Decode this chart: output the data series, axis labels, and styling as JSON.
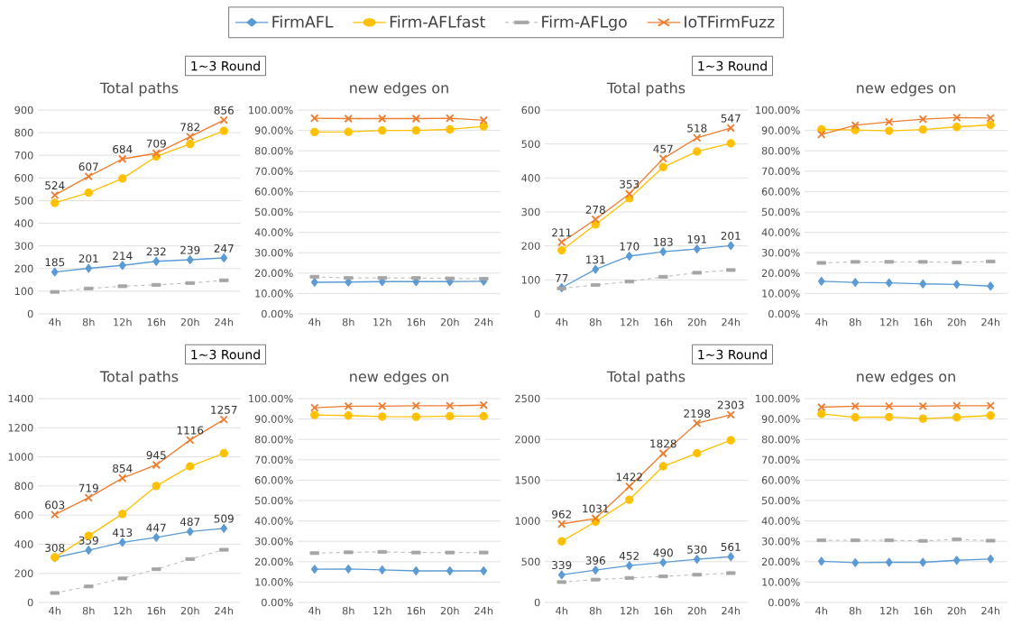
{
  "chart_data": [
    {
      "type": "line",
      "title": "Total paths",
      "subtitle": "1~3 Round",
      "categories": [
        "4h",
        "8h",
        "12h",
        "16h",
        "20h",
        "24h"
      ],
      "ylim": [
        0,
        900
      ],
      "yticks": [
        0,
        100,
        200,
        300,
        400,
        500,
        600,
        700,
        800,
        900
      ],
      "grid": "y",
      "legend": "top",
      "series": [
        {
          "name": "FirmAFL",
          "color": "#5b9bd5",
          "marker": "diamond",
          "line_style": "solid",
          "values": [
            185,
            201,
            214,
            232,
            239,
            247
          ],
          "value_labels": [
            "185",
            "201",
            "214",
            "232",
            "239",
            "247"
          ]
        },
        {
          "name": "Firm-AFLfast",
          "color": "#ffc000",
          "marker": "circle",
          "line_style": "solid",
          "values": [
            490,
            535,
            598,
            695,
            750,
            808
          ]
        },
        {
          "name": "Firm-AFLgo",
          "color": "#a5a5a5",
          "marker": "square",
          "line_style": "dashed",
          "values": [
            97,
            112,
            122,
            128,
            136,
            148
          ]
        },
        {
          "name": "IoTFirmFuzz",
          "color": "#ed7d31",
          "marker": "cross",
          "line_style": "solid",
          "values": [
            524,
            607,
            684,
            709,
            782,
            856
          ],
          "value_labels": [
            "524",
            "607",
            "684",
            "709",
            "782",
            "856"
          ]
        }
      ]
    },
    {
      "type": "line",
      "title": "new edges on",
      "categories": [
        "4h",
        "8h",
        "12h",
        "16h",
        "20h",
        "24h"
      ],
      "ylim": [
        0,
        100
      ],
      "yticks": [
        {
          "value": 0,
          "label": "0.00%"
        },
        {
          "value": 10,
          "label": "10.00%"
        },
        {
          "value": 20,
          "label": "20.00%"
        },
        {
          "value": 30,
          "label": "30.00%"
        },
        {
          "value": 40,
          "label": "40.00%"
        },
        {
          "value": 50,
          "label": "50.00%"
        },
        {
          "value": 60,
          "label": "60.00%"
        },
        {
          "value": 70,
          "label": "70.00%"
        },
        {
          "value": 80,
          "label": "80.00%"
        },
        {
          "value": 90,
          "label": "90.00%"
        },
        {
          "value": 100,
          "label": "100.00%"
        }
      ],
      "grid": "y",
      "series": [
        {
          "color": "#5b9bd5",
          "marker": "diamond",
          "line_style": "solid",
          "values": [
            15.5,
            15.6,
            15.8,
            15.8,
            15.8,
            16
          ]
        },
        {
          "color": "#ffc000",
          "marker": "circle",
          "line_style": "solid",
          "values": [
            89.2,
            89.3,
            90,
            90,
            90.5,
            92
          ]
        },
        {
          "color": "#a5a5a5",
          "marker": "square",
          "line_style": "dashed",
          "values": [
            18.2,
            17.6,
            17.6,
            17.6,
            17.4,
            17.2
          ]
        },
        {
          "color": "#ed7d31",
          "marker": "cross",
          "line_style": "solid",
          "values": [
            96,
            95.8,
            95.8,
            95.8,
            96,
            95
          ]
        }
      ]
    },
    {
      "type": "line",
      "title": "Total paths",
      "subtitle": "1~3 Round",
      "categories": [
        "4h",
        "8h",
        "12h",
        "16h",
        "20h",
        "24h"
      ],
      "ylim": [
        0,
        600
      ],
      "yticks": [
        0,
        100,
        200,
        300,
        400,
        500,
        600
      ],
      "grid": "y",
      "series": [
        {
          "color": "#5b9bd5",
          "marker": "diamond",
          "line_style": "solid",
          "values": [
            77,
            131,
            170,
            183,
            191,
            201
          ],
          "value_labels": [
            "77",
            "131",
            "170",
            "183",
            "191",
            "201"
          ]
        },
        {
          "color": "#ffc000",
          "marker": "circle",
          "line_style": "solid",
          "values": [
            187,
            263,
            340,
            432,
            478,
            502
          ]
        },
        {
          "color": "#a5a5a5",
          "marker": "square",
          "line_style": "dashed",
          "values": [
            75,
            85,
            95,
            109,
            121,
            129
          ]
        },
        {
          "color": "#ed7d31",
          "marker": "cross",
          "line_style": "solid",
          "values": [
            211,
            278,
            353,
            457,
            518,
            547
          ],
          "value_labels": [
            "211",
            "278",
            "353",
            "457",
            "518",
            "547"
          ]
        }
      ]
    },
    {
      "type": "line",
      "title": "new edges on",
      "categories": [
        "4h",
        "8h",
        "12h",
        "16h",
        "20h",
        "24h"
      ],
      "ylim": [
        0,
        100
      ],
      "yticks": [
        {
          "value": 0,
          "label": "0.00%"
        },
        {
          "value": 10,
          "label": "10.00%"
        },
        {
          "value": 20,
          "label": "20.00%"
        },
        {
          "value": 30,
          "label": "30.00%"
        },
        {
          "value": 40,
          "label": "40.00%"
        },
        {
          "value": 50,
          "label": "50.00%"
        },
        {
          "value": 60,
          "label": "60.00%"
        },
        {
          "value": 70,
          "label": "70.00%"
        },
        {
          "value": 80,
          "label": "80.00%"
        },
        {
          "value": 90,
          "label": "90.00%"
        },
        {
          "value": 100,
          "label": "100.00%"
        }
      ],
      "grid": "y",
      "series": [
        {
          "color": "#5b9bd5",
          "marker": "diamond",
          "line_style": "solid",
          "values": [
            16,
            15.4,
            15.2,
            14.7,
            14.4,
            13.6
          ]
        },
        {
          "color": "#ffc000",
          "marker": "circle",
          "line_style": "solid",
          "values": [
            90.5,
            90.2,
            89.8,
            90.4,
            91.7,
            92.7
          ]
        },
        {
          "color": "#a5a5a5",
          "marker": "square",
          "line_style": "dashed",
          "values": [
            25,
            25.5,
            25.5,
            25.5,
            25.2,
            25.7
          ]
        },
        {
          "color": "#ed7d31",
          "marker": "cross",
          "line_style": "solid",
          "values": [
            88,
            92.5,
            94.2,
            95.5,
            96.3,
            96.1
          ]
        }
      ]
    },
    {
      "type": "line",
      "title": "Total paths",
      "subtitle": "1~3 Round",
      "categories": [
        "4h",
        "8h",
        "12h",
        "16h",
        "20h",
        "24h"
      ],
      "ylim": [
        0,
        1400
      ],
      "yticks": [
        0,
        200,
        400,
        600,
        800,
        1000,
        1200,
        1400
      ],
      "grid": "y",
      "series": [
        {
          "color": "#5b9bd5",
          "marker": "diamond",
          "line_style": "solid",
          "values": [
            308,
            359,
            413,
            447,
            487,
            509
          ],
          "value_labels": [
            "308",
            "359",
            "413",
            "447",
            "487",
            "509"
          ]
        },
        {
          "color": "#ffc000",
          "marker": "circle",
          "line_style": "solid",
          "values": [
            310,
            458,
            608,
            800,
            935,
            1025
          ]
        },
        {
          "color": "#a5a5a5",
          "marker": "square",
          "line_style": "dashed",
          "values": [
            65,
            110,
            165,
            228,
            298,
            362
          ]
        },
        {
          "color": "#ed7d31",
          "marker": "cross",
          "line_style": "solid",
          "values": [
            603,
            719,
            854,
            945,
            1116,
            1257
          ],
          "value_labels": [
            "603",
            "719",
            "854",
            "945",
            "1116",
            "1257"
          ]
        }
      ]
    },
    {
      "type": "line",
      "title": "new edges on",
      "categories": [
        "4h",
        "8h",
        "12h",
        "16h",
        "20h",
        "24h"
      ],
      "ylim": [
        0,
        100
      ],
      "yticks": [
        {
          "value": 0,
          "label": "0.00%"
        },
        {
          "value": 10,
          "label": "10.00%"
        },
        {
          "value": 20,
          "label": "20.00%"
        },
        {
          "value": 30,
          "label": "30.00%"
        },
        {
          "value": 40,
          "label": "40.00%"
        },
        {
          "value": 50,
          "label": "50.00%"
        },
        {
          "value": 60,
          "label": "60.00%"
        },
        {
          "value": 70,
          "label": "70.00%"
        },
        {
          "value": 80,
          "label": "80.00%"
        },
        {
          "value": 90,
          "label": "90.00%"
        },
        {
          "value": 100,
          "label": "100.00%"
        }
      ],
      "grid": "y",
      "series": [
        {
          "color": "#5b9bd5",
          "marker": "diamond",
          "line_style": "solid",
          "values": [
            16.3,
            16.4,
            16,
            15.5,
            15.5,
            15.5
          ]
        },
        {
          "color": "#ffc000",
          "marker": "circle",
          "line_style": "solid",
          "values": [
            92,
            91.7,
            91.2,
            91.1,
            91.4,
            91.4
          ]
        },
        {
          "color": "#a5a5a5",
          "marker": "square",
          "line_style": "dashed",
          "values": [
            24.2,
            24.6,
            24.8,
            24.5,
            24.5,
            24.5
          ]
        },
        {
          "color": "#ed7d31",
          "marker": "cross",
          "line_style": "solid",
          "values": [
            95.5,
            96.3,
            96.3,
            96.5,
            96.5,
            96.8
          ]
        }
      ]
    },
    {
      "type": "line",
      "title": "Total paths",
      "subtitle": "1~3 Round",
      "categories": [
        "4h",
        "8h",
        "12h",
        "16h",
        "20h",
        "24h"
      ],
      "ylim": [
        0,
        2500
      ],
      "yticks": [
        0,
        500,
        1000,
        1500,
        2000,
        2500
      ],
      "grid": "y",
      "series": [
        {
          "color": "#5b9bd5",
          "marker": "diamond",
          "line_style": "solid",
          "values": [
            339,
            396,
            452,
            490,
            530,
            561
          ],
          "value_labels": [
            "339",
            "396",
            "452",
            "490",
            "530",
            "561"
          ]
        },
        {
          "color": "#ffc000",
          "marker": "circle",
          "line_style": "solid",
          "values": [
            750,
            990,
            1260,
            1670,
            1830,
            1990
          ]
        },
        {
          "color": "#a5a5a5",
          "marker": "square",
          "line_style": "dashed",
          "values": [
            250,
            280,
            300,
            320,
            340,
            360
          ]
        },
        {
          "color": "#ed7d31",
          "marker": "cross",
          "line_style": "solid",
          "values": [
            962,
            1031,
            1422,
            1828,
            2198,
            2303
          ],
          "value_labels": [
            "962",
            "1031",
            "1422",
            "1828",
            "2198",
            "2303"
          ]
        }
      ]
    },
    {
      "type": "line",
      "title": "new edges on",
      "categories": [
        "4h",
        "8h",
        "12h",
        "16h",
        "20h",
        "24h"
      ],
      "ylim": [
        0,
        100
      ],
      "yticks": [
        {
          "value": 0,
          "label": "0.00%"
        },
        {
          "value": 10,
          "label": "10.00%"
        },
        {
          "value": 20,
          "label": "20.00%"
        },
        {
          "value": 30,
          "label": "30.00%"
        },
        {
          "value": 40,
          "label": "40.00%"
        },
        {
          "value": 50,
          "label": "50.00%"
        },
        {
          "value": 60,
          "label": "60.00%"
        },
        {
          "value": 70,
          "label": "70.00%"
        },
        {
          "value": 80,
          "label": "80.00%"
        },
        {
          "value": 90,
          "label": "90.00%"
        },
        {
          "value": 100,
          "label": "100.00%"
        }
      ],
      "grid": "y",
      "series": [
        {
          "color": "#5b9bd5",
          "marker": "diamond",
          "line_style": "solid",
          "values": [
            20.2,
            19.5,
            19.7,
            19.7,
            20.7,
            21.3
          ]
        },
        {
          "color": "#ffc000",
          "marker": "circle",
          "line_style": "solid",
          "values": [
            92.5,
            90.8,
            91,
            90.2,
            90.8,
            91.7
          ]
        },
        {
          "color": "#a5a5a5",
          "marker": "square",
          "line_style": "dashed",
          "values": [
            30.5,
            30.5,
            30.5,
            30.2,
            31,
            30.3
          ]
        },
        {
          "color": "#ed7d31",
          "marker": "cross",
          "line_style": "solid",
          "values": [
            95.8,
            96.3,
            96.3,
            96.3,
            96.5,
            96.5
          ]
        }
      ]
    }
  ]
}
